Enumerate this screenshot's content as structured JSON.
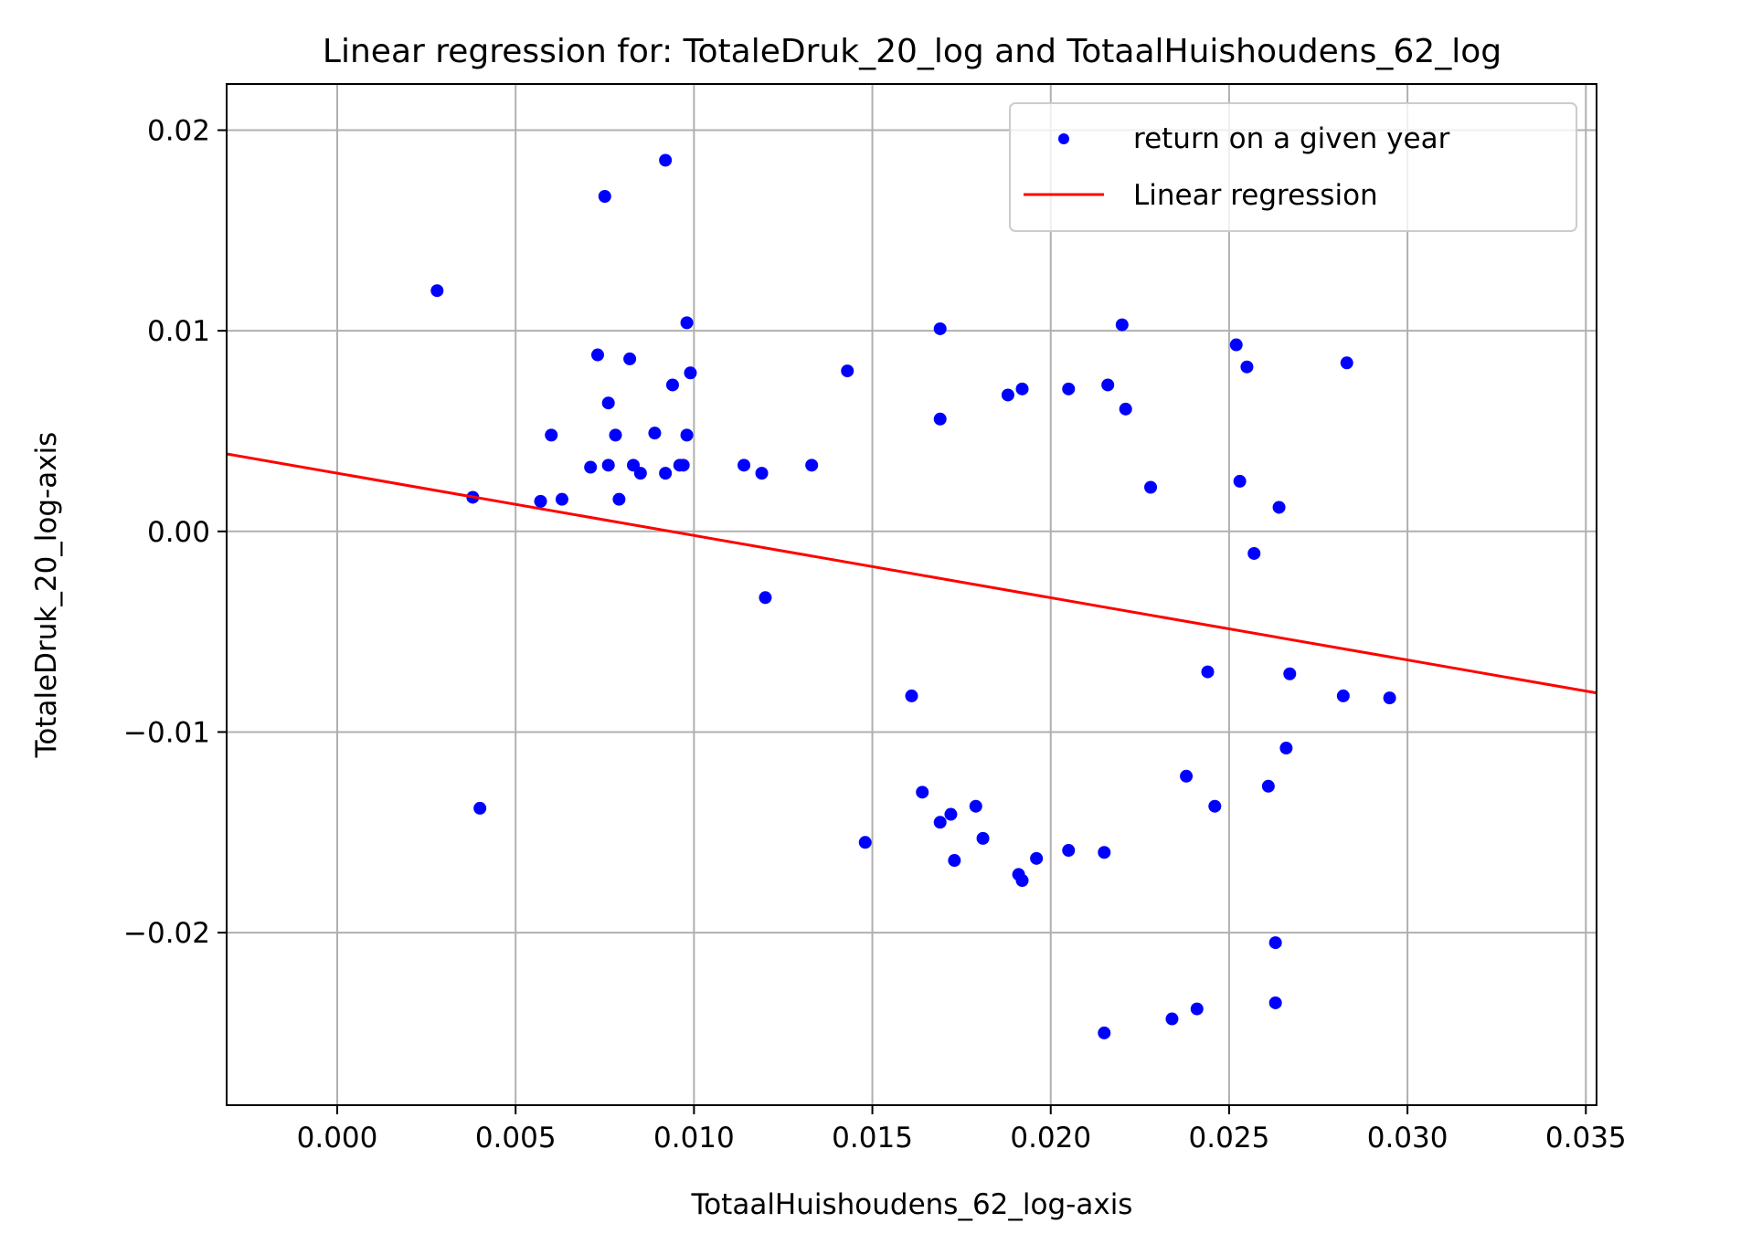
{
  "chart_data": {
    "type": "scatter",
    "title": "Linear regression for: TotaleDruk_20_log and TotaalHuishoudens_62_log",
    "xlabel": "TotaalHuishoudens_62_log-axis",
    "ylabel": "TotaleDruk_20_log-axis",
    "xlim": [
      -0.0031,
      0.0353
    ],
    "ylim": [
      -0.0286,
      0.0223
    ],
    "xticks": [
      0.0,
      0.005,
      0.01,
      0.015,
      0.02,
      0.025,
      0.03,
      0.035
    ],
    "xtick_labels": [
      "0.000",
      "0.005",
      "0.010",
      "0.015",
      "0.020",
      "0.025",
      "0.030",
      "0.035"
    ],
    "yticks": [
      0.02,
      0.01,
      0.0,
      -0.01,
      -0.02
    ],
    "ytick_labels": [
      "0.02",
      "0.01",
      "0.00",
      "−0.01",
      "−0.02"
    ],
    "grid": true,
    "legend_position": "top-right",
    "colors": {
      "points": "#0000ff",
      "regression": "#ff0000",
      "grid": "#b0b0b0"
    },
    "series": [
      {
        "name": "return on a given year",
        "kind": "scatter",
        "points": [
          [
            0.0028,
            0.012
          ],
          [
            0.0038,
            0.0017
          ],
          [
            0.004,
            -0.0138
          ],
          [
            0.0057,
            0.0015
          ],
          [
            0.006,
            0.0048
          ],
          [
            0.0063,
            0.0016
          ],
          [
            0.0071,
            0.0032
          ],
          [
            0.0073,
            0.0088
          ],
          [
            0.0075,
            0.0167
          ],
          [
            0.0076,
            0.0033
          ],
          [
            0.0076,
            0.0064
          ],
          [
            0.0078,
            0.0048
          ],
          [
            0.0079,
            0.0016
          ],
          [
            0.0082,
            0.0086
          ],
          [
            0.0083,
            0.0033
          ],
          [
            0.0085,
            0.0029
          ],
          [
            0.0089,
            0.0049
          ],
          [
            0.0092,
            0.0029
          ],
          [
            0.0092,
            0.0185
          ],
          [
            0.0094,
            0.0073
          ],
          [
            0.0096,
            0.0033
          ],
          [
            0.0097,
            0.0033
          ],
          [
            0.0098,
            0.0048
          ],
          [
            0.0098,
            0.0104
          ],
          [
            0.0099,
            0.0079
          ],
          [
            0.0114,
            0.0033
          ],
          [
            0.0119,
            0.0029
          ],
          [
            0.012,
            -0.0033
          ],
          [
            0.0133,
            0.0033
          ],
          [
            0.0143,
            0.008
          ],
          [
            0.0148,
            -0.0155
          ],
          [
            0.0161,
            -0.0082
          ],
          [
            0.0164,
            -0.013
          ],
          [
            0.0169,
            -0.0145
          ],
          [
            0.0169,
            0.0101
          ],
          [
            0.0169,
            0.0056
          ],
          [
            0.0172,
            -0.0141
          ],
          [
            0.0173,
            -0.0164
          ],
          [
            0.0179,
            -0.0137
          ],
          [
            0.0181,
            -0.0153
          ],
          [
            0.0188,
            0.0068
          ],
          [
            0.0191,
            -0.0171
          ],
          [
            0.0192,
            0.0071
          ],
          [
            0.0192,
            -0.0174
          ],
          [
            0.0196,
            -0.0163
          ],
          [
            0.0205,
            0.0071
          ],
          [
            0.0205,
            -0.0159
          ],
          [
            0.0215,
            -0.025
          ],
          [
            0.0215,
            -0.016
          ],
          [
            0.0216,
            0.0073
          ],
          [
            0.022,
            0.0103
          ],
          [
            0.0221,
            0.0061
          ],
          [
            0.0228,
            0.0022
          ],
          [
            0.0234,
            -0.0243
          ],
          [
            0.0238,
            -0.0122
          ],
          [
            0.0241,
            -0.0238
          ],
          [
            0.0244,
            -0.007
          ],
          [
            0.0246,
            -0.0137
          ],
          [
            0.0252,
            0.0093
          ],
          [
            0.0253,
            0.0025
          ],
          [
            0.0255,
            0.0082
          ],
          [
            0.0257,
            -0.0011
          ],
          [
            0.0261,
            -0.0127
          ],
          [
            0.0263,
            -0.0205
          ],
          [
            0.0263,
            -0.0235
          ],
          [
            0.0264,
            0.0012
          ],
          [
            0.0266,
            -0.0108
          ],
          [
            0.0267,
            -0.0071
          ],
          [
            0.0282,
            -0.0082
          ],
          [
            0.0283,
            0.0084
          ],
          [
            0.0295,
            -0.0083
          ]
        ]
      },
      {
        "name": "Linear regression",
        "kind": "line",
        "intercept": 0.0029,
        "slope": -0.3103
      }
    ]
  }
}
